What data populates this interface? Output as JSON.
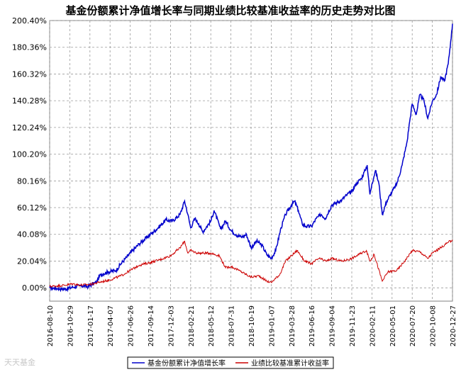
{
  "chart_data": {
    "type": "line",
    "title": "基金份额累计净值增长率与同期业绩比较基准收益率的历史走势对比图",
    "yticks": [
      "0.00%",
      "20.04%",
      "40.08%",
      "60.12%",
      "80.16%",
      "100.20%",
      "120.24%",
      "140.28%",
      "160.32%",
      "180.36%",
      "200.40%"
    ],
    "ylim": [
      -10,
      200.4
    ],
    "xticks": [
      "2016-08-10",
      "2016-10-29",
      "2017-01-17",
      "2017-04-07",
      "2017-06-26",
      "2017-09-14",
      "2017-12-03",
      "2018-02-21",
      "2018-05-12",
      "2018-07-31",
      "2018-10-19",
      "2019-01-07",
      "2019-03-28",
      "2019-06-16",
      "2019-09-04",
      "2019-11-23",
      "2020-02-11",
      "2020-05-01",
      "2020-07-20",
      "2020-10-08",
      "2020-12-27"
    ],
    "x_start": "2016-08-10",
    "x_end": "2020-12-27",
    "grid": true,
    "legend_position": "bottom",
    "series": [
      {
        "name": "基金份额累计净值增长率",
        "color": "#0000cc",
        "points": [
          [
            "2016-08-10",
            0.0
          ],
          [
            "2016-09-10",
            -0.5
          ],
          [
            "2016-10-10",
            -1.0
          ],
          [
            "2016-11-10",
            0.5
          ],
          [
            "2016-12-10",
            1.5
          ],
          [
            "2017-01-10",
            1.0
          ],
          [
            "2017-02-10",
            4.0
          ],
          [
            "2017-03-01",
            10.0
          ],
          [
            "2017-04-01",
            12.0
          ],
          [
            "2017-05-01",
            13.0
          ],
          [
            "2017-05-20",
            18.0
          ],
          [
            "2017-06-26",
            26.0
          ],
          [
            "2017-08-01",
            33.0
          ],
          [
            "2017-09-14",
            40.0
          ],
          [
            "2017-10-15",
            45.0
          ],
          [
            "2017-11-15",
            51.0
          ],
          [
            "2017-12-10",
            50.0
          ],
          [
            "2018-01-10",
            55.0
          ],
          [
            "2018-01-28",
            65.0
          ],
          [
            "2018-02-10",
            55.0
          ],
          [
            "2018-02-21",
            45.0
          ],
          [
            "2018-03-10",
            52.0
          ],
          [
            "2018-03-25",
            48.0
          ],
          [
            "2018-04-10",
            42.0
          ],
          [
            "2018-05-12",
            50.0
          ],
          [
            "2018-05-25",
            58.0
          ],
          [
            "2018-06-20",
            44.0
          ],
          [
            "2018-07-10",
            50.0
          ],
          [
            "2018-07-31",
            43.0
          ],
          [
            "2018-08-20",
            40.0
          ],
          [
            "2018-09-10",
            38.0
          ],
          [
            "2018-10-01",
            40.0
          ],
          [
            "2018-10-19",
            30.0
          ],
          [
            "2018-11-10",
            35.0
          ],
          [
            "2018-12-01",
            32.0
          ],
          [
            "2018-12-20",
            25.0
          ],
          [
            "2019-01-07",
            22.0
          ],
          [
            "2019-01-25",
            28.0
          ],
          [
            "2019-02-15",
            45.0
          ],
          [
            "2019-03-05",
            55.0
          ],
          [
            "2019-03-28",
            62.0
          ],
          [
            "2019-04-10",
            65.0
          ],
          [
            "2019-04-25",
            58.0
          ],
          [
            "2019-05-10",
            48.0
          ],
          [
            "2019-05-25",
            46.0
          ],
          [
            "2019-06-16",
            46.0
          ],
          [
            "2019-07-05",
            52.0
          ],
          [
            "2019-07-25",
            55.0
          ],
          [
            "2019-08-10",
            52.0
          ],
          [
            "2019-09-04",
            62.0
          ],
          [
            "2019-09-25",
            64.0
          ],
          [
            "2019-10-15",
            66.0
          ],
          [
            "2019-11-05",
            70.0
          ],
          [
            "2019-11-23",
            72.0
          ],
          [
            "2019-12-10",
            78.0
          ],
          [
            "2019-12-31",
            82.0
          ],
          [
            "2020-01-15",
            88.0
          ],
          [
            "2020-01-23",
            92.0
          ],
          [
            "2020-02-03",
            70.0
          ],
          [
            "2020-02-11",
            78.0
          ],
          [
            "2020-02-25",
            88.0
          ],
          [
            "2020-03-10",
            78.0
          ],
          [
            "2020-03-23",
            55.0
          ],
          [
            "2020-04-10",
            65.0
          ],
          [
            "2020-05-01",
            72.0
          ],
          [
            "2020-05-20",
            78.0
          ],
          [
            "2020-06-10",
            92.0
          ],
          [
            "2020-06-30",
            110.0
          ],
          [
            "2020-07-10",
            125.0
          ],
          [
            "2020-07-20",
            138.0
          ],
          [
            "2020-08-05",
            130.0
          ],
          [
            "2020-08-20",
            145.0
          ],
          [
            "2020-09-05",
            140.0
          ],
          [
            "2020-09-20",
            127.0
          ],
          [
            "2020-10-08",
            140.0
          ],
          [
            "2020-10-25",
            145.0
          ],
          [
            "2020-11-10",
            158.0
          ],
          [
            "2020-11-25",
            155.0
          ],
          [
            "2020-12-10",
            168.0
          ],
          [
            "2020-12-20",
            185.0
          ],
          [
            "2020-12-27",
            198.0
          ]
        ]
      },
      {
        "name": "业绩比较基准累计收益率",
        "color": "#cc0000",
        "points": [
          [
            "2016-08-10",
            1.0
          ],
          [
            "2016-09-10",
            1.5
          ],
          [
            "2016-10-10",
            2.0
          ],
          [
            "2016-11-10",
            3.0
          ],
          [
            "2016-12-10",
            2.0
          ],
          [
            "2017-01-17",
            2.5
          ],
          [
            "2017-02-20",
            4.0
          ],
          [
            "2017-04-07",
            6.0
          ],
          [
            "2017-05-20",
            9.0
          ],
          [
            "2017-06-26",
            13.0
          ],
          [
            "2017-08-01",
            17.0
          ],
          [
            "2017-09-14",
            19.0
          ],
          [
            "2017-10-20",
            21.0
          ],
          [
            "2017-12-03",
            24.0
          ],
          [
            "2018-01-10",
            30.0
          ],
          [
            "2018-01-28",
            35.0
          ],
          [
            "2018-02-10",
            26.0
          ],
          [
            "2018-02-21",
            28.0
          ],
          [
            "2018-03-20",
            26.0
          ],
          [
            "2018-05-12",
            26.0
          ],
          [
            "2018-06-15",
            24.0
          ],
          [
            "2018-07-10",
            15.0
          ],
          [
            "2018-07-31",
            16.0
          ],
          [
            "2018-09-01",
            13.0
          ],
          [
            "2018-10-19",
            8.0
          ],
          [
            "2018-11-20",
            9.0
          ],
          [
            "2018-12-20",
            5.0
          ],
          [
            "2019-01-07",
            4.0
          ],
          [
            "2019-02-10",
            10.0
          ],
          [
            "2019-03-05",
            20.0
          ],
          [
            "2019-03-28",
            24.0
          ],
          [
            "2019-04-20",
            28.0
          ],
          [
            "2019-05-20",
            20.0
          ],
          [
            "2019-06-16",
            18.0
          ],
          [
            "2019-07-15",
            22.0
          ],
          [
            "2019-08-15",
            20.0
          ],
          [
            "2019-09-04",
            22.0
          ],
          [
            "2019-10-15",
            20.0
          ],
          [
            "2019-11-23",
            22.0
          ],
          [
            "2019-12-31",
            26.0
          ],
          [
            "2020-01-20",
            28.0
          ],
          [
            "2020-02-03",
            20.0
          ],
          [
            "2020-02-20",
            25.0
          ],
          [
            "2020-03-23",
            5.0
          ],
          [
            "2020-04-15",
            12.0
          ],
          [
            "2020-05-20",
            13.0
          ],
          [
            "2020-06-20",
            20.0
          ],
          [
            "2020-07-20",
            28.0
          ],
          [
            "2020-08-20",
            27.0
          ],
          [
            "2020-09-20",
            22.0
          ],
          [
            "2020-10-08",
            26.0
          ],
          [
            "2020-11-10",
            30.0
          ],
          [
            "2020-12-10",
            34.0
          ],
          [
            "2020-12-27",
            36.0
          ]
        ]
      }
    ]
  },
  "watermark": "天天基金"
}
